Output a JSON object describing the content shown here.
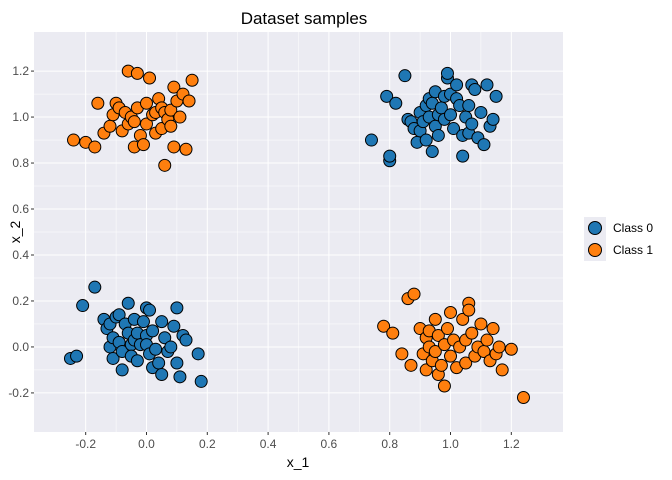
{
  "chart_data": {
    "type": "scatter",
    "title": "Dataset samples",
    "xlabel": "x_1",
    "ylabel": "x_2",
    "xlim": [
      -0.37,
      1.37
    ],
    "ylim": [
      -0.37,
      1.37
    ],
    "xticks": [
      "-0.2",
      "0.0",
      "0.2",
      "0.4",
      "0.6",
      "0.8",
      "1.0",
      "1.2"
    ],
    "xtick_values": [
      -0.2,
      0.0,
      0.2,
      0.4,
      0.6,
      0.8,
      1.0,
      1.2
    ],
    "yticks": [
      "-0.2",
      "0.0",
      "0.2",
      "0.4",
      "0.6",
      "0.8",
      "1.0",
      "1.2"
    ],
    "ytick_values": [
      -0.2,
      0.0,
      0.2,
      0.4,
      0.6,
      0.8,
      1.0,
      1.2
    ],
    "grid": true,
    "legend_position": "right",
    "background": "#ebebf2",
    "series": [
      {
        "name": "Class 0",
        "color": "#1f77b4",
        "points": [
          [
            -0.25,
            -0.05
          ],
          [
            -0.23,
            -0.04
          ],
          [
            -0.21,
            0.18
          ],
          [
            -0.17,
            0.26
          ],
          [
            -0.14,
            0.12
          ],
          [
            -0.13,
            0.08
          ],
          [
            -0.12,
            0.0
          ],
          [
            -0.12,
            0.1
          ],
          [
            -0.11,
            0.04
          ],
          [
            -0.11,
            -0.05
          ],
          [
            -0.1,
            0.13
          ],
          [
            -0.09,
            0.14
          ],
          [
            -0.09,
            0.02
          ],
          [
            -0.08,
            -0.02
          ],
          [
            -0.08,
            -0.1
          ],
          [
            -0.07,
            0.1
          ],
          [
            -0.06,
            0.19
          ],
          [
            -0.06,
            0.06
          ],
          [
            -0.05,
            0.01
          ],
          [
            -0.05,
            -0.04
          ],
          [
            -0.04,
            0.12
          ],
          [
            -0.04,
            0.03
          ],
          [
            -0.03,
            0.06
          ],
          [
            -0.03,
            -0.06
          ],
          [
            -0.02,
            0.01
          ],
          [
            -0.01,
            0.11
          ],
          [
            0.0,
            0.17
          ],
          [
            0.0,
            0.05
          ],
          [
            0.0,
            0.01
          ],
          [
            0.01,
            -0.03
          ],
          [
            0.01,
            0.16
          ],
          [
            0.02,
            0.07
          ],
          [
            0.02,
            -0.09
          ],
          [
            0.03,
            -0.01
          ],
          [
            0.04,
            -0.07
          ],
          [
            0.05,
            -0.12
          ],
          [
            0.05,
            0.11
          ],
          [
            0.06,
            0.04
          ],
          [
            0.07,
            -0.02
          ],
          [
            0.08,
            0.0
          ],
          [
            0.09,
            0.09
          ],
          [
            0.1,
            -0.07
          ],
          [
            0.1,
            0.17
          ],
          [
            0.11,
            -0.13
          ],
          [
            0.12,
            0.05
          ],
          [
            0.13,
            0.03
          ],
          [
            0.17,
            -0.03
          ],
          [
            0.18,
            -0.15
          ],
          [
            0.74,
            0.9
          ],
          [
            0.79,
            1.09
          ],
          [
            0.8,
            0.81
          ],
          [
            0.8,
            0.83
          ],
          [
            0.82,
            1.06
          ],
          [
            0.85,
            1.18
          ],
          [
            0.86,
            0.99
          ],
          [
            0.87,
            0.98
          ],
          [
            0.88,
            0.95
          ],
          [
            0.89,
            0.89
          ],
          [
            0.9,
            1.02
          ],
          [
            0.9,
            0.94
          ],
          [
            0.91,
            0.98
          ],
          [
            0.92,
            0.9
          ],
          [
            0.92,
            1.05
          ],
          [
            0.93,
            1.0
          ],
          [
            0.93,
            1.08
          ],
          [
            0.94,
            0.85
          ],
          [
            0.94,
            1.06
          ],
          [
            0.95,
            0.96
          ],
          [
            0.95,
            1.11
          ],
          [
            0.96,
            1.01
          ],
          [
            0.96,
            0.92
          ],
          [
            0.97,
            1.04
          ],
          [
            0.98,
            0.99
          ],
          [
            0.98,
            1.09
          ],
          [
            0.99,
            1.17
          ],
          [
            0.99,
            1.19
          ],
          [
            1.0,
            1.01
          ],
          [
            1.0,
            1.1
          ],
          [
            1.01,
            0.95
          ],
          [
            1.02,
            1.14
          ],
          [
            1.02,
            1.08
          ],
          [
            1.03,
            1.05
          ],
          [
            1.04,
            0.92
          ],
          [
            1.04,
            0.83
          ],
          [
            1.05,
            1.0
          ],
          [
            1.06,
            0.93
          ],
          [
            1.06,
            1.05
          ],
          [
            1.07,
            0.97
          ],
          [
            1.07,
            1.14
          ],
          [
            1.08,
            1.12
          ],
          [
            1.09,
            0.91
          ],
          [
            1.1,
            1.02
          ],
          [
            1.11,
            0.88
          ],
          [
            1.12,
            1.14
          ],
          [
            1.13,
            0.96
          ],
          [
            1.14,
            0.99
          ],
          [
            1.15,
            1.09
          ]
        ]
      },
      {
        "name": "Class 1",
        "color": "#ff7f0e",
        "points": [
          [
            -0.24,
            0.9
          ],
          [
            -0.2,
            0.89
          ],
          [
            -0.17,
            0.87
          ],
          [
            -0.16,
            1.06
          ],
          [
            -0.14,
            0.93
          ],
          [
            -0.12,
            0.96
          ],
          [
            -0.11,
            1.01
          ],
          [
            -0.1,
            1.06
          ],
          [
            -0.09,
            1.04
          ],
          [
            -0.08,
            0.94
          ],
          [
            -0.07,
            1.02
          ],
          [
            -0.06,
            1.2
          ],
          [
            -0.06,
            0.97
          ],
          [
            -0.05,
            1.0
          ],
          [
            -0.04,
            0.98
          ],
          [
            -0.04,
            0.87
          ],
          [
            -0.03,
            1.04
          ],
          [
            -0.03,
            1.19
          ],
          [
            -0.02,
            0.92
          ],
          [
            -0.01,
            0.88
          ],
          [
            0.0,
            0.97
          ],
          [
            0.0,
            1.06
          ],
          [
            0.01,
            1.17
          ],
          [
            0.02,
            1.01
          ],
          [
            0.03,
            1.02
          ],
          [
            0.03,
            0.93
          ],
          [
            0.04,
            1.08
          ],
          [
            0.05,
            1.04
          ],
          [
            0.05,
            0.95
          ],
          [
            0.06,
            1.02
          ],
          [
            0.06,
            0.79
          ],
          [
            0.07,
            0.99
          ],
          [
            0.08,
            1.03
          ],
          [
            0.08,
            0.96
          ],
          [
            0.09,
            1.13
          ],
          [
            0.09,
            0.87
          ],
          [
            0.1,
            1.07
          ],
          [
            0.11,
            1.0
          ],
          [
            0.12,
            1.1
          ],
          [
            0.13,
            0.86
          ],
          [
            0.14,
            1.07
          ],
          [
            0.15,
            1.16
          ],
          [
            0.78,
            0.09
          ],
          [
            0.81,
            0.06
          ],
          [
            0.84,
            -0.03
          ],
          [
            0.86,
            0.21
          ],
          [
            0.87,
            -0.08
          ],
          [
            0.88,
            0.23
          ],
          [
            0.9,
            0.08
          ],
          [
            0.91,
            -0.03
          ],
          [
            0.92,
            0.04
          ],
          [
            0.92,
            -0.1
          ],
          [
            0.93,
            0.07
          ],
          [
            0.93,
            0.0
          ],
          [
            0.94,
            -0.06
          ],
          [
            0.95,
            0.12
          ],
          [
            0.95,
            -0.02
          ],
          [
            0.96,
            0.05
          ],
          [
            0.96,
            -0.12
          ],
          [
            0.97,
            -0.08
          ],
          [
            0.98,
            0.01
          ],
          [
            0.98,
            -0.17
          ],
          [
            0.99,
            0.08
          ],
          [
            1.0,
            -0.04
          ],
          [
            1.0,
            0.15
          ],
          [
            1.01,
            0.03
          ],
          [
            1.02,
            -0.09
          ],
          [
            1.03,
            0.0
          ],
          [
            1.04,
            0.12
          ],
          [
            1.05,
            0.03
          ],
          [
            1.05,
            -0.07
          ],
          [
            1.06,
            0.19
          ],
          [
            1.06,
            0.16
          ],
          [
            1.07,
            0.06
          ],
          [
            1.08,
            -0.04
          ],
          [
            1.09,
            0.0
          ],
          [
            1.1,
            0.1
          ],
          [
            1.11,
            -0.02
          ],
          [
            1.12,
            0.03
          ],
          [
            1.13,
            -0.06
          ],
          [
            1.14,
            0.08
          ],
          [
            1.15,
            -0.03
          ],
          [
            1.16,
            0.0
          ],
          [
            1.17,
            -0.1
          ],
          [
            1.2,
            -0.01
          ],
          [
            1.24,
            -0.22
          ]
        ]
      }
    ]
  }
}
